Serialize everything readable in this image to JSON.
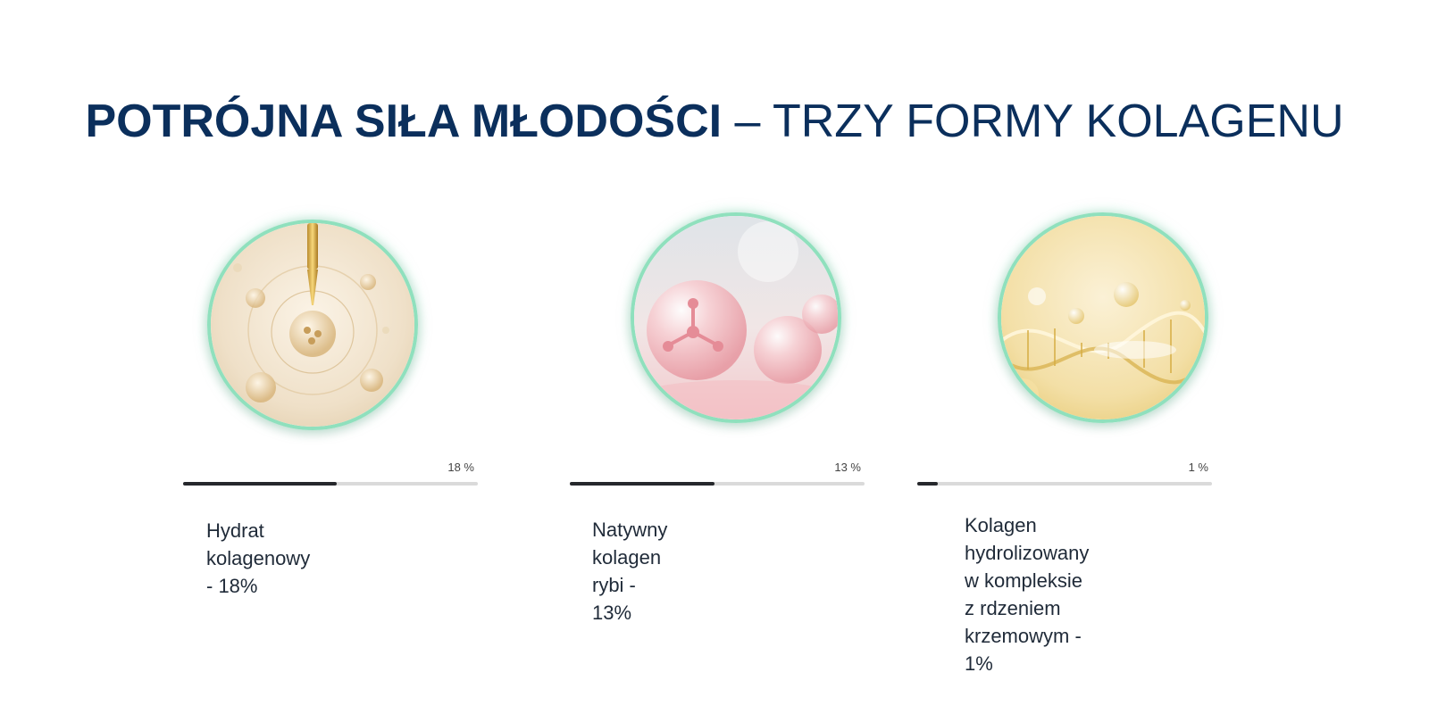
{
  "headline": {
    "bold": "POTRÓJNA SIŁA MŁODOŚCI",
    "light": " – TRZY FORMY KOLAGENU"
  },
  "items": [
    {
      "percent_label": "18 %",
      "progress": 0.52,
      "label_lines": [
        "Hydrat kolagenowy - 18%"
      ],
      "image": "golden-serum-dropper-icon"
    },
    {
      "percent_label": "13 %",
      "progress": 0.49,
      "label_lines": [
        "Natywny kolagen rybi - 13%"
      ],
      "image": "pink-molecule-bubbles-icon"
    },
    {
      "percent_label": "1 %",
      "progress": 0.07,
      "label_lines": [
        "Kolagen hydrolizowany",
        "w kompleksie z rdzeniem",
        "krzemowym - 1%"
      ],
      "image": "golden-dna-helix-icon"
    }
  ],
  "colors": {
    "headline": "#0b2f5c",
    "bar_fill": "#26282c",
    "bar_track": "#dadada",
    "circle_border": "#8fe0bd"
  }
}
